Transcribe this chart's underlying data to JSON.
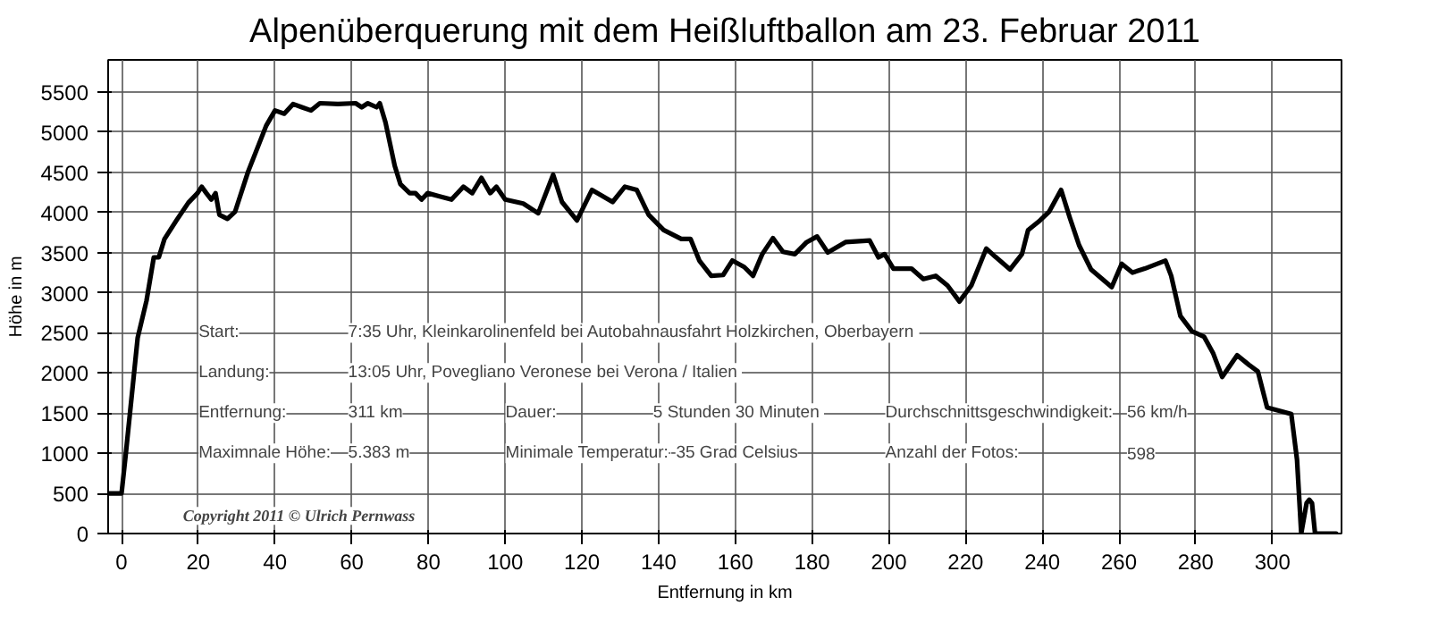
{
  "chart_data": {
    "type": "line",
    "title": "Alpenüberquerung mit dem Heißluftballon am 23. Februar 2011",
    "xlabel": "Entfernung in km",
    "ylabel": "Höhe in m",
    "x": [
      -3.5,
      0,
      1.1,
      4.2,
      6.5,
      8.4,
      9.7,
      11.2,
      14.3,
      17.4,
      19.8,
      20.9,
      22.1,
      23.4,
      24.5,
      25.5,
      27.6,
      29.6,
      33,
      37.7,
      40,
      42.4,
      44.7,
      47,
      49.4,
      51.7,
      56.4,
      61,
      62.6,
      64.2,
      66.5,
      67.3,
      68.8,
      71.2,
      72.7,
      75.1,
      76.6,
      78.2,
      79.8,
      82.9,
      86,
      89.1,
      91.4,
      93.8,
      96.1,
      97.7,
      100,
      104.7,
      108.6,
      112.5,
      114.8,
      118.7,
      122.6,
      128,
      131.2,
      134.3,
      137.4,
      141.3,
      145.9,
      148.3,
      150.6,
      153.7,
      156.8,
      159.2,
      162.3,
      164.6,
      167,
      169.8,
      172.4,
      175.5,
      178.6,
      181.3,
      184.1,
      188.7,
      195,
      197.3,
      198.9,
      201.2,
      205.9,
      209,
      212.2,
      215.3,
      218.4,
      221.5,
      225.4,
      227.7,
      231.6,
      234.7,
      236.3,
      239.4,
      241.8,
      244.9,
      247.2,
      249.6,
      252.7,
      258.1,
      260.7,
      263.5,
      266.7,
      272.1,
      273.6,
      276,
      279,
      282.2,
      284.5,
      286.9,
      290.8,
      293.9,
      296.2,
      298.6,
      301,
      304.9,
      306.4,
      307.5,
      308.9,
      309.6,
      310.3,
      311.1,
      313.5,
      316.6
    ],
    "series": [
      {
        "color": "#000000",
        "values": [
          500,
          500,
          990,
          2440,
          2900,
          3440,
          3440,
          3670,
          3900,
          4120,
          4240,
          4320,
          4240,
          4160,
          4240,
          3970,
          3920,
          4010,
          4510,
          5080,
          5270,
          5230,
          5350,
          5310,
          5270,
          5360,
          5350,
          5360,
          5310,
          5360,
          5310,
          5360,
          5120,
          4580,
          4350,
          4240,
          4240,
          4160,
          4240,
          4200,
          4160,
          4320,
          4240,
          4430,
          4240,
          4320,
          4160,
          4110,
          3990,
          4470,
          4130,
          3900,
          4280,
          4130,
          4320,
          4280,
          3970,
          3780,
          3670,
          3670,
          3400,
          3210,
          3220,
          3400,
          3320,
          3210,
          3480,
          3680,
          3510,
          3480,
          3630,
          3700,
          3500,
          3630,
          3650,
          3440,
          3480,
          3300,
          3300,
          3170,
          3210,
          3090,
          2890,
          3090,
          3550,
          3450,
          3290,
          3480,
          3780,
          3900,
          4010,
          4280,
          3930,
          3590,
          3290,
          3070,
          3360,
          3250,
          3300,
          3400,
          3210,
          2710,
          2520,
          2450,
          2250,
          1950,
          2220,
          2100,
          2020,
          1570,
          1540,
          1490,
          920,
          0,
          380,
          420,
          380,
          0,
          0,
          0
        ]
      }
    ],
    "xlim": [
      -3.5,
      318
    ],
    "ylim": [
      0,
      5900
    ],
    "xticks": [
      0,
      20,
      40,
      60,
      80,
      100,
      120,
      140,
      160,
      180,
      200,
      220,
      240,
      260,
      280,
      300
    ],
    "yticks": [
      0,
      500,
      1000,
      1500,
      2000,
      2500,
      3000,
      3500,
      4000,
      4500,
      5000,
      5500
    ],
    "grid": true,
    "marker": "none",
    "line_style": "solid",
    "annotations": [
      "Start:",
      "7:35 Uhr,  Kleinkarolinenfeld bei Autobahnausfahrt Holzkirchen, Oberbayern",
      "Landung:",
      "13:05 Uhr,  Povegliano Veronese bei Verona / Italien",
      "Entfernung:",
      "311 km",
      "Dauer:",
      "5 Stunden  30 Minuten",
      "Durchschnittsgeschwindigkeit:",
      "56 km/h",
      "Maximnale Höhe:",
      "5.383 m",
      "Minimale Temperatur:",
      "-35 Grad Celsius",
      "Anzahl der Fotos:",
      "598",
      "Copyright 2011 © Ulrich Pernwass"
    ]
  }
}
